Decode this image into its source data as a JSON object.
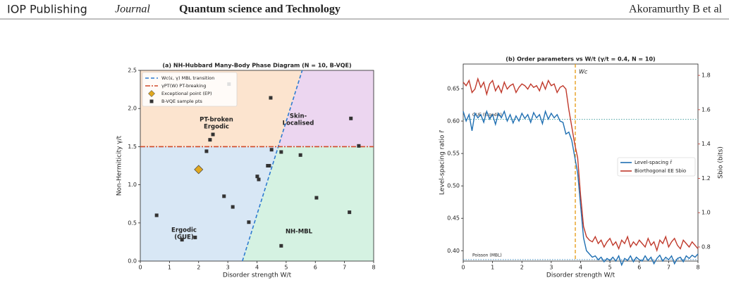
{
  "header": {
    "publisher": "IOP Publishing",
    "journal": "Journal",
    "journal_title": "Quantum science and Technology",
    "authors": "Akoramurthy B et al"
  },
  "chart_data": [
    {
      "type": "scatter",
      "title": "(a) NH-Hubbard Many-Body Phase Diagram (N = 10, B-VQE)",
      "x_label": "Disorder strength W/t",
      "y_label": "Non-Hermiticity γ/t",
      "xlim": [
        0,
        8
      ],
      "ylim": [
        0,
        2.5
      ],
      "xticks": [
        0,
        1,
        2,
        3,
        4,
        5,
        6,
        7,
        8
      ],
      "yticks": [
        {
          "value": 0,
          "label": "0.0"
        },
        0.5,
        {
          "value": 1,
          "label": "1.0"
        },
        1.5,
        {
          "value": 2,
          "label": "2.0"
        },
        2.5
      ],
      "legend": "upper left",
      "regions": [
        {
          "label": [
            "PT-broken",
            "Ergodic"
          ],
          "color": "#fce4cf",
          "label_color": "#c0392b"
        },
        {
          "label": [
            "Skin-",
            "Localised"
          ],
          "color": "#ecd6f0",
          "label_color": "#8e44ad"
        },
        {
          "label": [
            "Ergodic",
            "(GUE)"
          ],
          "color": "#d8e7f5",
          "label_color": "#2471a3"
        },
        {
          "label": [
            "NH-MBL"
          ],
          "color": "#d5f2e2",
          "label_color": "#1e8449"
        }
      ],
      "series": [
        {
          "name": "Wc(ε, γ) MBL transition",
          "color": "#2e7bd0",
          "style": "dashed",
          "x": [
            3.5,
            5.55
          ],
          "values": [
            0,
            2.5
          ]
        },
        {
          "name": "γPT(W) PT-breaking",
          "color": "#d04a2a",
          "style": "dashdot",
          "x": [
            0,
            8
          ],
          "values": [
            1.5,
            1.5
          ]
        },
        {
          "name": "Exceptional point (EP)",
          "color": "#e0a820",
          "marker": "diamond",
          "x": [
            2.0
          ],
          "values": [
            1.2
          ]
        },
        {
          "name": "B-VQE sample pts",
          "color": "#333333",
          "marker": "square",
          "x": [
            0.56,
            1.43,
            1.88,
            2.27,
            2.39,
            2.49,
            2.87,
            3.17,
            3.04,
            3.72,
            4.01,
            4.06,
            4.37,
            4.42,
            4.47,
            4.5,
            4.83,
            4.83,
            5.49,
            6.04,
            7.17,
            7.22,
            7.49
          ],
          "values": [
            0.6,
            0.28,
            0.31,
            1.44,
            1.59,
            1.66,
            0.85,
            0.71,
            2.32,
            0.51,
            1.11,
            1.07,
            1.25,
            1.25,
            2.14,
            1.46,
            1.43,
            0.2,
            1.39,
            0.83,
            0.64,
            1.87,
            1.51
          ]
        }
      ]
    },
    {
      "type": "line",
      "title": "(b) Order parameters vs W/t (γ/t = 0.4, N = 10)",
      "x_label": "Disorder strength W/t",
      "y_label": "Level-spacing ratio r̄",
      "y2_label": "Sbio (bits)",
      "xlim": [
        0,
        8
      ],
      "ylim": [
        0.384,
        0.688
      ],
      "y2lim": [
        0.718,
        1.866
      ],
      "xticks": [
        0,
        1,
        2,
        3,
        4,
        5,
        6,
        7,
        8
      ],
      "yticks": [
        {
          "value": 0.4,
          "label": "0.40"
        },
        0.45,
        {
          "value": 0.5,
          "label": "0.50"
        },
        0.55,
        {
          "value": 0.6,
          "label": "0.60"
        },
        0.65
      ],
      "y2ticks": [
        0.8,
        {
          "value": 1,
          "label": "1.0"
        },
        1.2,
        1.4,
        1.6,
        1.8
      ],
      "legend": "center right",
      "hlines": [
        {
          "value": 0.6027,
          "label": "GUE (Ergodic)",
          "color": "#4aa3a3"
        },
        {
          "value": 0.3863,
          "label": "Poisson (MBL)",
          "color": "#4a90c0"
        }
      ],
      "vline": {
        "value": 3.82,
        "label": "Wc",
        "color": "#e8a020"
      },
      "x": [
        0,
        0.1,
        0.2,
        0.3,
        0.4,
        0.5,
        0.6,
        0.7,
        0.8,
        0.9,
        1,
        1.1,
        1.2,
        1.3,
        1.4,
        1.5,
        1.6,
        1.7,
        1.8,
        1.9,
        2,
        2.1,
        2.2,
        2.3,
        2.4,
        2.5,
        2.6,
        2.7,
        2.8,
        2.9,
        3,
        3.1,
        3.2,
        3.3,
        3.4,
        3.5,
        3.6,
        3.7,
        3.8,
        3.9,
        4,
        4.1,
        4.2,
        4.3,
        4.4,
        4.5,
        4.6,
        4.7,
        4.8,
        4.9,
        5,
        5.1,
        5.2,
        5.3,
        5.4,
        5.5,
        5.6,
        5.7,
        5.8,
        5.9,
        6,
        6.1,
        6.2,
        6.3,
        6.4,
        6.5,
        6.6,
        6.7,
        6.8,
        6.9,
        7,
        7.1,
        7.2,
        7.3,
        7.4,
        7.5,
        7.6,
        7.7,
        7.8,
        7.9,
        8
      ],
      "series": [
        {
          "name": "Level-spacing r̄",
          "color": "#1f6fb2",
          "values": [
            0.615,
            0.6,
            0.61,
            0.585,
            0.612,
            0.605,
            0.61,
            0.598,
            0.615,
            0.603,
            0.61,
            0.595,
            0.612,
            0.605,
            0.615,
            0.6,
            0.61,
            0.597,
            0.608,
            0.6,
            0.612,
            0.604,
            0.61,
            0.598,
            0.613,
            0.605,
            0.61,
            0.596,
            0.615,
            0.603,
            0.612,
            0.605,
            0.61,
            0.6,
            0.598,
            0.58,
            0.583,
            0.57,
            0.545,
            0.52,
            0.47,
            0.42,
            0.4,
            0.395,
            0.39,
            0.392,
            0.386,
            0.39,
            0.383,
            0.388,
            0.385,
            0.39,
            0.384,
            0.392,
            0.378,
            0.388,
            0.385,
            0.392,
            0.383,
            0.39,
            0.386,
            0.384,
            0.392,
            0.385,
            0.39,
            0.38,
            0.388,
            0.393,
            0.384,
            0.39,
            0.386,
            0.392,
            0.38,
            0.388,
            0.39,
            0.383,
            0.392,
            0.388,
            0.393,
            0.39,
            0.395
          ]
        },
        {
          "name": "Biorthogonal EE Sbio",
          "color": "#c0392b",
          "axis": "y2",
          "values": [
            1.76,
            1.74,
            1.77,
            1.7,
            1.72,
            1.78,
            1.73,
            1.76,
            1.69,
            1.75,
            1.77,
            1.71,
            1.74,
            1.7,
            1.76,
            1.72,
            1.74,
            1.75,
            1.7,
            1.73,
            1.75,
            1.74,
            1.72,
            1.75,
            1.73,
            1.74,
            1.71,
            1.76,
            1.72,
            1.77,
            1.74,
            1.75,
            1.7,
            1.73,
            1.74,
            1.72,
            1.6,
            1.5,
            1.4,
            1.32,
            1.1,
            0.92,
            0.86,
            0.84,
            0.83,
            0.86,
            0.82,
            0.84,
            0.8,
            0.83,
            0.85,
            0.81,
            0.83,
            0.79,
            0.84,
            0.82,
            0.86,
            0.8,
            0.83,
            0.81,
            0.84,
            0.82,
            0.8,
            0.85,
            0.81,
            0.83,
            0.78,
            0.84,
            0.82,
            0.86,
            0.8,
            0.83,
            0.85,
            0.81,
            0.79,
            0.84,
            0.82,
            0.8,
            0.83,
            0.81,
            0.79
          ]
        }
      ]
    }
  ]
}
